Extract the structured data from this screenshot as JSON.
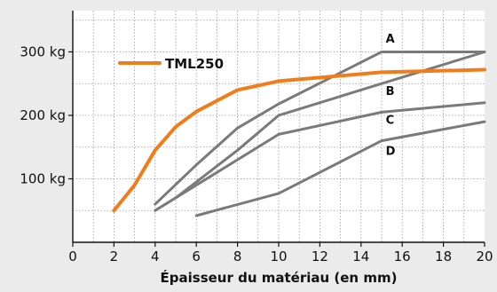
{
  "chart_data": {
    "type": "line",
    "title": "",
    "xlabel": "Épaisseur du matériau (en mm)",
    "ylabel": "",
    "xlim": [
      0,
      20
    ],
    "ylim": [
      0,
      365
    ],
    "x_ticks": [
      0,
      2,
      4,
      6,
      8,
      10,
      12,
      14,
      16,
      18,
      20
    ],
    "x_tick_labels": [
      "0",
      "2",
      "4",
      "6",
      "8",
      "10",
      "12",
      "14",
      "16",
      "18",
      "20"
    ],
    "y_ticks": [
      100,
      200,
      300
    ],
    "y_tick_labels": [
      "100 kg",
      "200 kg",
      "300 kg"
    ],
    "grid": true,
    "legend_position": "top-left",
    "series": [
      {
        "name": "TML250",
        "color": "#f07d1a",
        "points": [
          [
            2,
            50
          ],
          [
            3,
            90
          ],
          [
            4,
            145
          ],
          [
            5,
            182
          ],
          [
            6,
            206
          ],
          [
            8,
            240
          ],
          [
            10,
            254
          ],
          [
            15,
            268
          ],
          [
            20,
            272
          ]
        ]
      },
      {
        "name": "A",
        "color": "#7a7a7a",
        "points": [
          [
            4,
            60
          ],
          [
            6,
            122
          ],
          [
            8,
            180
          ],
          [
            10,
            218
          ],
          [
            15,
            300
          ],
          [
            20,
            300
          ]
        ]
      },
      {
        "name": "",
        "color": "#7a7a7a",
        "points": [
          [
            5,
            70
          ],
          [
            8,
            145
          ],
          [
            10,
            200
          ],
          [
            15,
            250
          ],
          [
            20,
            300
          ]
        ]
      },
      {
        "name": "B",
        "color": "#7a7a7a",
        "points": [
          [
            4,
            50
          ],
          [
            10,
            170
          ],
          [
            15,
            205
          ],
          [
            20,
            220
          ]
        ]
      },
      {
        "name": "C",
        "color": "#7a7a7a",
        "points": [
          [
            6,
            42
          ],
          [
            10,
            77
          ],
          [
            15,
            160
          ],
          [
            20,
            190
          ]
        ]
      }
    ],
    "series_labels": [
      {
        "text": "A",
        "x": 15.2,
        "y": 315
      },
      {
        "text": "B",
        "x": 15.2,
        "y": 232
      },
      {
        "text": "C",
        "x": 15.2,
        "y": 187
      },
      {
        "text": "D",
        "x": 15.2,
        "y": 138
      }
    ]
  }
}
